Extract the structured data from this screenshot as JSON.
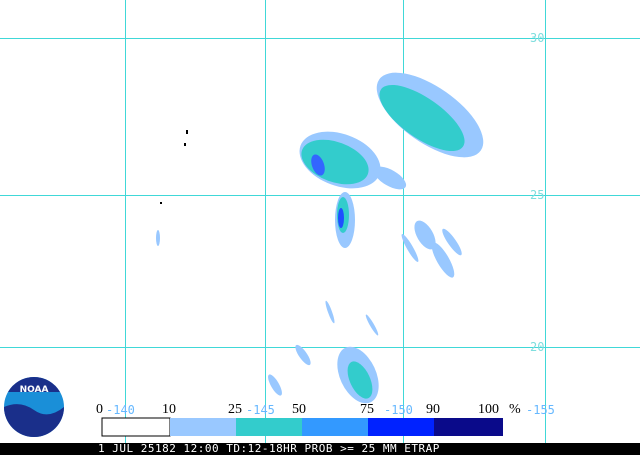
{
  "map": {
    "lat_labels": [
      "30",
      "25",
      "20"
    ],
    "lon_labels": [
      "-140",
      "-145",
      "-150",
      "-155"
    ],
    "logo": "NOAA",
    "legend": {
      "labels": [
        "0",
        "10",
        "25",
        "50",
        "75",
        "90",
        "100"
      ],
      "unit": "%"
    },
    "footer": "1 JUL 25182 12:00 TD:12-18HR PROB >= 25 MM ETRAP"
  }
}
